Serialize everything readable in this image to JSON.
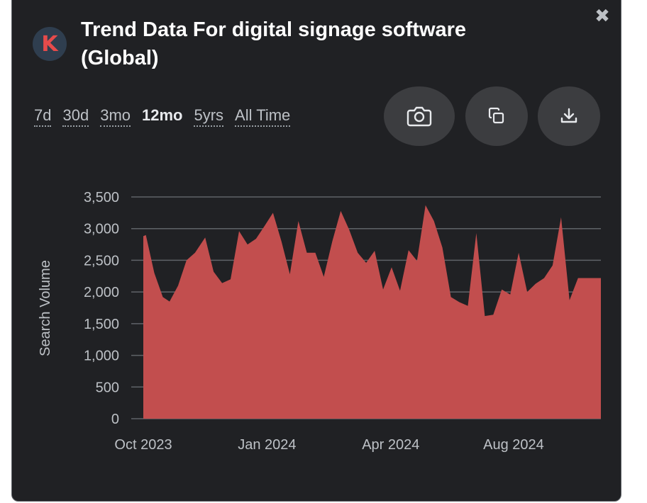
{
  "header": {
    "logo_letter": "K",
    "title": "Trend Data For digital signage software (Global)",
    "close_symbol": "✖"
  },
  "ranges": [
    {
      "label": "7d",
      "active": false
    },
    {
      "label": "30d",
      "active": false
    },
    {
      "label": "3mo",
      "active": false
    },
    {
      "label": "12mo",
      "active": true
    },
    {
      "label": "5yrs",
      "active": false
    },
    {
      "label": "All Time",
      "active": false
    }
  ],
  "tools": [
    "camera-icon",
    "copy-icon",
    "download-icon"
  ],
  "colors": {
    "background": "#202124",
    "area_fill": "#c24e4e",
    "grid": "#5f6368",
    "axis_text": "#bdc1c6"
  },
  "chart_data": {
    "type": "area",
    "title": "",
    "xlabel": "",
    "ylabel": "Search Volume",
    "ylim": [
      0,
      3500
    ],
    "yticks": [
      0,
      500,
      1000,
      1500,
      2000,
      2500,
      3000,
      3500
    ],
    "ytick_labels": [
      "0",
      "500",
      "1,000",
      "1,500",
      "2,000",
      "2,500",
      "3,000",
      "3,500"
    ],
    "xlim": [
      0,
      54
    ],
    "xticks": [
      {
        "x": 0,
        "label": "Oct 2023"
      },
      {
        "x": 14.6,
        "label": "Jan 2024"
      },
      {
        "x": 29.2,
        "label": "Apr 2024"
      },
      {
        "x": 43.7,
        "label": "Aug 2024"
      }
    ],
    "series": [
      {
        "name": "Search Volume",
        "x": [
          0,
          0.3,
          1.3,
          2.3,
          3.1,
          4.1,
          5.1,
          6.1,
          7.3,
          8.3,
          9.3,
          10.3,
          11.3,
          12.3,
          13.3,
          14.3,
          15.3,
          16.3,
          17.3,
          18.3,
          19.3,
          20.3,
          21.3,
          22.3,
          23.3,
          24.3,
          25.3,
          26.3,
          27.3,
          28.3,
          29.3,
          30.3,
          31.3,
          32.3,
          33.3,
          34.3,
          35.3,
          36.3,
          37.3,
          38.3,
          39.3,
          40.3,
          41.3,
          42.3,
          43.3,
          44.3,
          45.3,
          46.3,
          47.3,
          48.3,
          49.3,
          50.3,
          51.3,
          52.3,
          53.3,
          54
        ],
        "values": [
          2880,
          2900,
          2300,
          1920,
          1850,
          2100,
          2500,
          2620,
          2860,
          2320,
          2140,
          2200,
          2960,
          2750,
          2840,
          3040,
          3250,
          2800,
          2280,
          3120,
          2620,
          2620,
          2240,
          2800,
          3280,
          2980,
          2620,
          2460,
          2650,
          2040,
          2390,
          2020,
          2660,
          2490,
          3370,
          3120,
          2700,
          1920,
          1840,
          1780,
          2930,
          1620,
          1640,
          2040,
          1960,
          2620,
          2000,
          2130,
          2220,
          2420,
          3180,
          1870,
          2220,
          2220,
          2220,
          2220
        ]
      }
    ]
  }
}
